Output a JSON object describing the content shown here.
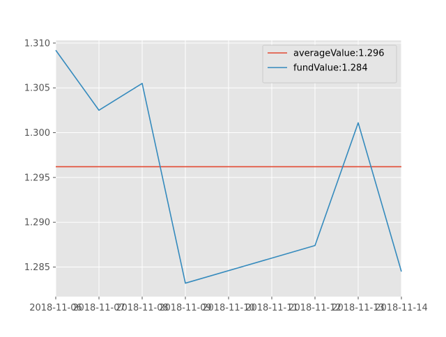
{
  "chart_data": {
    "type": "line",
    "title": "",
    "xlabel": "",
    "ylabel": "",
    "x": [
      "2018-11-06",
      "2018-11-07",
      "2018-11-08",
      "2018-11-09",
      "2018-11-10",
      "2018-11-11",
      "2018-11-12",
      "2018-11-13",
      "2018-11-14"
    ],
    "x_tick_labels": [
      "2018-11-06",
      "2018-11-07",
      "2018-11-08",
      "2018-11-09",
      "2018-11-10",
      "2018-11-11",
      "2018-11-12",
      "2018-11-13",
      "2018-11-14"
    ],
    "ylim": [
      1.2817,
      1.3103
    ],
    "y_ticks": [
      1.285,
      1.29,
      1.295,
      1.3,
      1.305,
      1.31
    ],
    "y_tick_labels": [
      "1.285",
      "1.290",
      "1.295",
      "1.300",
      "1.305",
      "1.310"
    ],
    "grid": true,
    "legend_position": "top-right",
    "series": [
      {
        "name": "averageValue:1.296",
        "color": "#e24a33",
        "points": [
          {
            "x": "2018-11-06",
            "y": 1.2962
          },
          {
            "x": "2018-11-14",
            "y": 1.2962
          }
        ]
      },
      {
        "name": "fundValue:1.284",
        "color": "#348abd",
        "points": [
          {
            "x": "2018-11-06",
            "y": 1.3092
          },
          {
            "x": "2018-11-07",
            "y": 1.3025
          },
          {
            "x": "2018-11-08",
            "y": 1.3055
          },
          {
            "x": "2018-11-09",
            "y": 1.2832
          },
          {
            "x": "2018-11-12",
            "y": 1.2874
          },
          {
            "x": "2018-11-13",
            "y": 1.3011
          },
          {
            "x": "2018-11-14",
            "y": 1.2845
          }
        ]
      }
    ],
    "colors": {
      "background": "#e5e5e5",
      "grid": "#ffffff",
      "tick_text": "#555555"
    }
  }
}
